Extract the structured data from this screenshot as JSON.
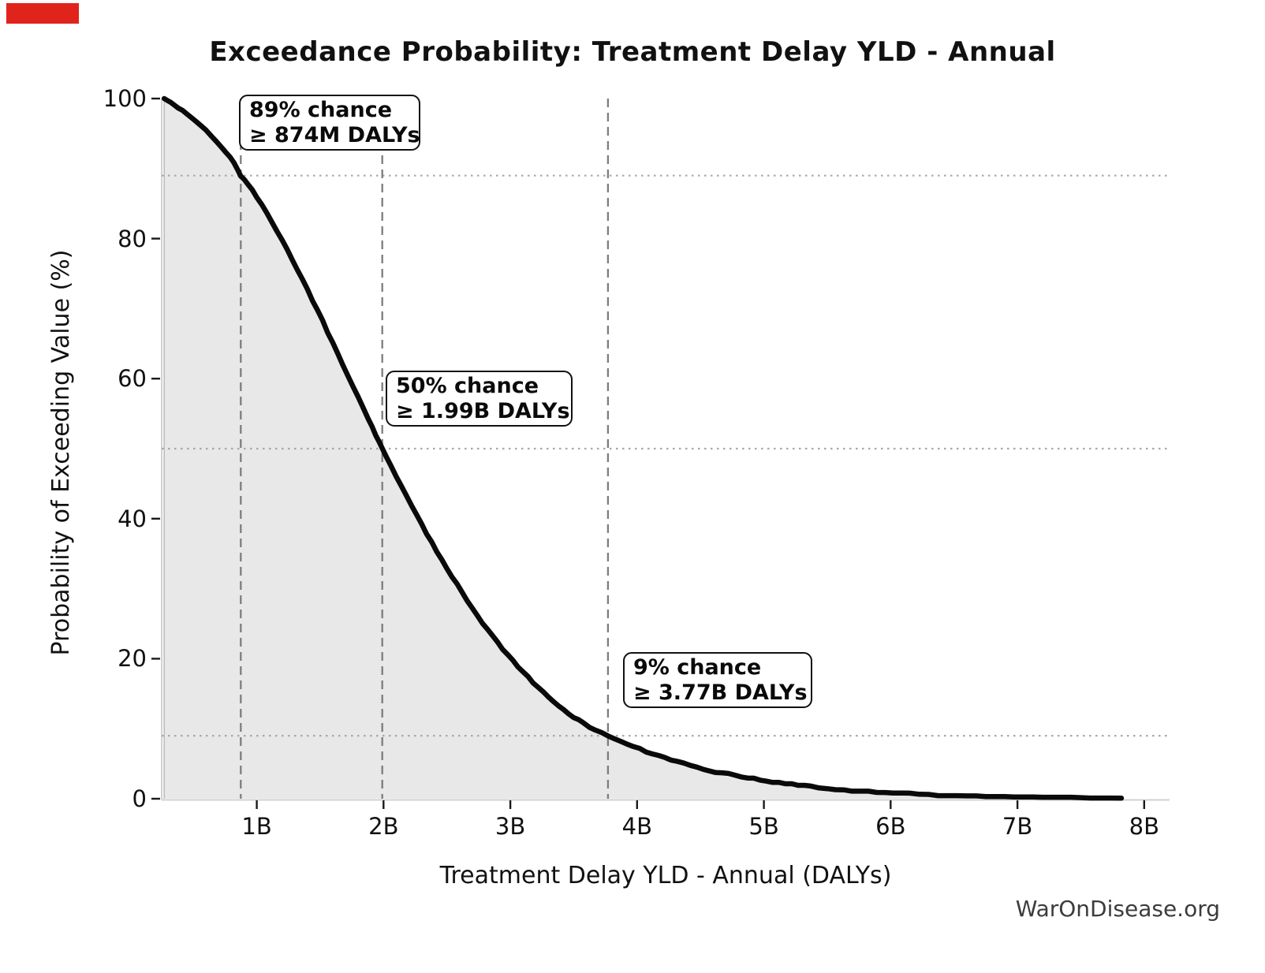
{
  "title": "Exceedance Probability: Treatment Delay YLD - Annual",
  "watermark": "WarOnDisease.org",
  "red_marker": {
    "color": "#e0241b"
  },
  "axes": {
    "x": {
      "label": "Treatment Delay YLD - Annual (DALYs)",
      "ticks": [
        "1B",
        "2B",
        "3B",
        "4B",
        "5B",
        "6B",
        "7B",
        "8B"
      ],
      "tick_values_billions": [
        1,
        2,
        3,
        4,
        5,
        6,
        7,
        8
      ]
    },
    "y": {
      "label": "Probability of Exceeding Value (%)",
      "ticks": [
        "0",
        "20",
        "40",
        "60",
        "80",
        "100"
      ],
      "tick_values_percent": [
        0,
        20,
        40,
        60,
        80,
        100
      ]
    }
  },
  "annotations": [
    {
      "line1": "89% chance",
      "line2": "≥ 874M DALYs",
      "prob_percent": 89,
      "value_billions": 0.874
    },
    {
      "line1": "50% chance",
      "line2": "≥ 1.99B DALYs",
      "prob_percent": 50,
      "value_billions": 1.99
    },
    {
      "line1": "9% chance",
      "line2": "≥ 3.77B DALYs",
      "prob_percent": 9,
      "value_billions": 3.77
    }
  ],
  "guides": {
    "vlines_billions": [
      0.874,
      1.99,
      3.77
    ],
    "hlines_percent": [
      89,
      50,
      9
    ],
    "vline_color": "#7d7d7d",
    "hline_color": "#a8a8a8"
  },
  "chart_data": {
    "type": "line",
    "title": "Exceedance Probability: Treatment Delay YLD - Annual",
    "xlabel": "Treatment Delay YLD - Annual (DALYs)",
    "ylabel": "Probability of Exceeding Value (%)",
    "xlim_billions": [
      0.25,
      8.2
    ],
    "ylim_percent": [
      0,
      100
    ],
    "grid": "guide lines only (dashed verticals at key values, dotted horizontals at key probabilities)",
    "legend": "none",
    "fill_under_curve": true,
    "colors": {
      "curve": "#0a0a0a",
      "fill": "#e8e8e8",
      "fill_edge": "#bdbdbd",
      "spine": "#cccccc",
      "tick": "#1a1a1a"
    },
    "series": [
      {
        "name": "exceedance-curve",
        "x_billions": [
          0.27,
          0.32,
          0.38,
          0.45,
          0.52,
          0.6,
          0.68,
          0.76,
          0.82,
          0.874,
          0.93,
          1.0,
          1.08,
          1.16,
          1.24,
          1.32,
          1.4,
          1.48,
          1.56,
          1.64,
          1.72,
          1.8,
          1.88,
          1.94,
          1.99,
          2.06,
          2.14,
          2.22,
          2.3,
          2.38,
          2.46,
          2.54,
          2.62,
          2.7,
          2.78,
          2.86,
          2.94,
          3.02,
          3.1,
          3.18,
          3.26,
          3.34,
          3.42,
          3.5,
          3.58,
          3.67,
          3.77,
          3.87,
          3.97,
          4.07,
          4.17,
          4.27,
          4.37,
          4.47,
          4.57,
          4.67,
          4.77,
          4.87,
          4.97,
          5.07,
          5.17,
          5.27,
          5.37,
          5.5,
          5.63,
          5.76,
          5.89,
          6.02,
          6.15,
          6.3,
          6.45,
          6.6,
          6.75,
          6.9,
          7.05,
          7.2,
          7.35,
          7.5,
          7.65,
          7.82
        ],
        "y_percent": [
          100,
          99.4,
          98.7,
          97.8,
          96.8,
          95.5,
          94.0,
          92.3,
          90.9,
          89.0,
          87.8,
          85.9,
          83.6,
          81.1,
          78.4,
          75.6,
          72.7,
          69.7,
          66.6,
          63.5,
          60.4,
          57.3,
          54.2,
          51.9,
          50.0,
          47.5,
          44.7,
          41.9,
          39.2,
          36.6,
          34.1,
          31.7,
          29.4,
          27.2,
          25.1,
          23.2,
          21.4,
          19.7,
          18.1,
          16.6,
          15.2,
          13.9,
          12.7,
          11.6,
          10.8,
          9.85,
          9.0,
          8.2,
          7.4,
          6.7,
          6.1,
          5.5,
          5.0,
          4.5,
          4.05,
          3.65,
          3.3,
          2.95,
          2.65,
          2.4,
          2.15,
          1.95,
          1.75,
          1.5,
          1.3,
          1.12,
          0.97,
          0.84,
          0.73,
          0.62,
          0.53,
          0.45,
          0.39,
          0.33,
          0.29,
          0.25,
          0.22,
          0.19,
          0.17,
          0.15
        ]
      }
    ],
    "key_points": [
      {
        "probability_percent": 89,
        "value": "874M DALYs"
      },
      {
        "probability_percent": 50,
        "value": "1.99B DALYs"
      },
      {
        "probability_percent": 9,
        "value": "3.77B DALYs"
      }
    ]
  }
}
